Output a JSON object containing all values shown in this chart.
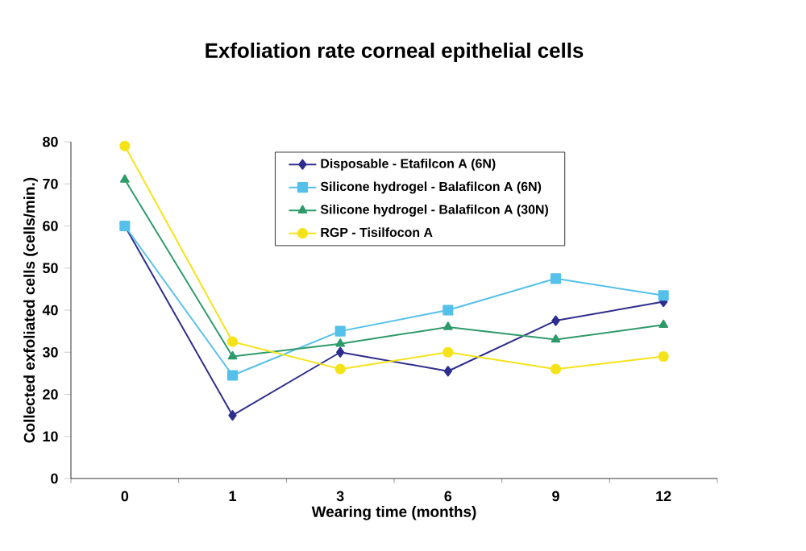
{
  "chart_data": {
    "type": "line",
    "title": "Exfoliation rate corneal epithelial cells",
    "xlabel": "Wearing time (months)",
    "ylabel": "Collected exfoliated cells (cells/min.)",
    "categories": [
      "0",
      "1",
      "3",
      "6",
      "9",
      "12"
    ],
    "series": [
      {
        "name": "Disposable - Etafilcon A (6N)",
        "color": "#2e2e8c",
        "marker": "diamond",
        "values": [
          60,
          15,
          30,
          25.5,
          37.5,
          42
        ]
      },
      {
        "name": "Silicone hydrogel - Balafilcon A (6N)",
        "color": "#55c0ea",
        "marker": "square",
        "values": [
          60,
          24.5,
          35,
          40,
          47.5,
          43.5
        ]
      },
      {
        "name": "Silicone hydrogel - Balafilcon A (30N)",
        "color": "#2e9a6a",
        "marker": "triangle",
        "values": [
          71,
          29,
          32,
          36,
          33,
          36.5
        ]
      },
      {
        "name": "RGP - Tisilfocon A",
        "color": "#f5e31a",
        "marker": "circle",
        "values": [
          79,
          32.5,
          26,
          30,
          26,
          29
        ]
      }
    ],
    "ylim": [
      0,
      80
    ],
    "yticks": [
      0,
      10,
      20,
      30,
      40,
      50,
      60,
      70,
      80
    ],
    "grid": false,
    "legend": "top",
    "line_style": "solid"
  }
}
